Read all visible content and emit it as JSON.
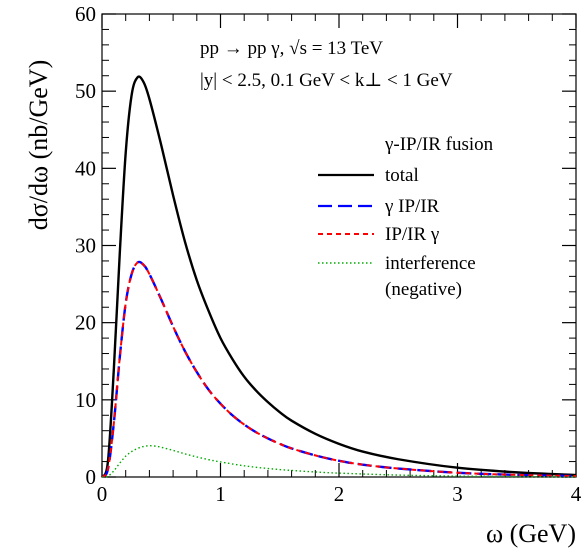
{
  "chart_data": {
    "type": "line",
    "title": "",
    "xlabel": "ω (GeV)",
    "ylabel": "dσ/dω (nb/GeV)",
    "xlim": [
      0,
      4
    ],
    "ylim": [
      0,
      60
    ],
    "x_ticks": [
      0,
      1,
      2,
      3,
      4
    ],
    "y_ticks": [
      0,
      10,
      20,
      30,
      40,
      50,
      60
    ],
    "x_tick_labels": [
      "0",
      "1",
      "2",
      "3",
      "4"
    ],
    "y_tick_labels": [
      "0",
      "10",
      "20",
      "30",
      "40",
      "50",
      "60"
    ],
    "grid": false,
    "legend_position": "right",
    "annotations": {
      "line1": "pp → pp γ,  √s = 13 TeV",
      "line2": "|y| < 2.5,  0.1 GeV < k⊥ < 1 GeV",
      "legend_header": "γ-IP/IR fusion",
      "legend_note": "(negative)"
    },
    "series": [
      {
        "name": "total",
        "color": "#000000",
        "style": "solid",
        "x": [
          0.0,
          0.05,
          0.1,
          0.15,
          0.2,
          0.25,
          0.3,
          0.35,
          0.4,
          0.5,
          0.6,
          0.7,
          0.8,
          0.9,
          1.0,
          1.1,
          1.2,
          1.3,
          1.4,
          1.5,
          1.6,
          1.8,
          2.0,
          2.2,
          2.5,
          3.0,
          3.5,
          4.0
        ],
        "y": [
          0.0,
          2.0,
          14.0,
          29.0,
          42.0,
          49.5,
          51.8,
          51.2,
          49.0,
          43.0,
          36.5,
          30.5,
          25.5,
          21.5,
          18.0,
          15.3,
          13.0,
          11.2,
          9.7,
          8.4,
          7.3,
          5.6,
          4.3,
          3.3,
          2.3,
          1.2,
          0.6,
          0.25
        ]
      },
      {
        "name": "γ IP/IR",
        "color": "#0000ff",
        "style": "long-dash",
        "x": [
          0.0,
          0.05,
          0.1,
          0.15,
          0.2,
          0.25,
          0.3,
          0.35,
          0.4,
          0.5,
          0.6,
          0.7,
          0.8,
          0.9,
          1.0,
          1.1,
          1.2,
          1.3,
          1.4,
          1.5,
          1.6,
          1.8,
          2.0,
          2.2,
          2.5,
          3.0,
          3.5,
          4.0
        ],
        "y": [
          0.0,
          1.0,
          7.0,
          15.5,
          22.5,
          26.3,
          27.8,
          27.5,
          26.3,
          23.0,
          19.5,
          16.3,
          13.6,
          11.3,
          9.5,
          8.0,
          6.8,
          5.8,
          5.0,
          4.3,
          3.7,
          2.8,
          2.1,
          1.6,
          1.1,
          0.55,
          0.27,
          0.12
        ]
      },
      {
        "name": "IP/IR γ",
        "color": "#ff0000",
        "style": "short-dash",
        "x": [
          0.0,
          0.05,
          0.1,
          0.15,
          0.2,
          0.25,
          0.3,
          0.35,
          0.4,
          0.5,
          0.6,
          0.7,
          0.8,
          0.9,
          1.0,
          1.1,
          1.2,
          1.3,
          1.4,
          1.5,
          1.6,
          1.8,
          2.0,
          2.2,
          2.5,
          3.0,
          3.5,
          4.0
        ],
        "y": [
          0.0,
          1.0,
          7.0,
          15.5,
          22.5,
          26.3,
          27.8,
          27.5,
          26.3,
          23.0,
          19.5,
          16.3,
          13.6,
          11.3,
          9.5,
          8.0,
          6.8,
          5.8,
          5.0,
          4.3,
          3.7,
          2.8,
          2.1,
          1.6,
          1.1,
          0.55,
          0.27,
          0.12
        ]
      },
      {
        "name": "interference",
        "color": "#00aa00",
        "style": "dotted",
        "x": [
          0.0,
          0.05,
          0.1,
          0.15,
          0.2,
          0.25,
          0.3,
          0.35,
          0.4,
          0.45,
          0.5,
          0.6,
          0.7,
          0.8,
          0.9,
          1.0,
          1.2,
          1.4,
          1.6,
          1.8,
          2.0,
          2.5,
          3.0,
          3.5,
          4.0
        ],
        "y": [
          0.0,
          0.1,
          0.8,
          1.8,
          2.7,
          3.3,
          3.7,
          3.95,
          4.05,
          4.0,
          3.85,
          3.45,
          3.0,
          2.6,
          2.25,
          1.95,
          1.45,
          1.1,
          0.85,
          0.65,
          0.5,
          0.25,
          0.12,
          0.06,
          0.02
        ]
      }
    ]
  }
}
